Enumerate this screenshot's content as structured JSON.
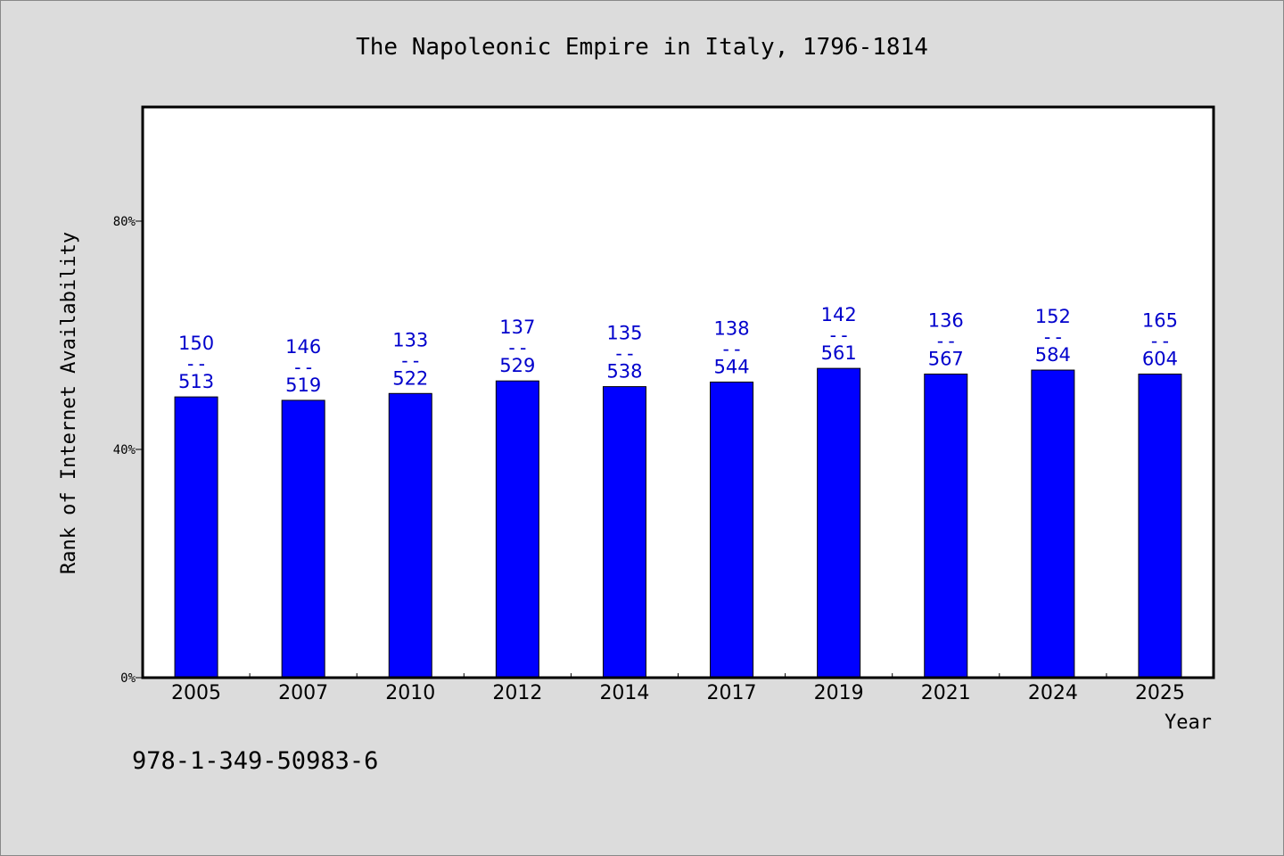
{
  "chart_data": {
    "type": "bar",
    "title": "The Napoleonic Empire in Italy, 1796-1814",
    "xlabel": "Year",
    "ylabel": "Rank of Internet Availability",
    "ylim": [
      0,
      100
    ],
    "yticks": [
      {
        "value": 0,
        "label": "0%"
      },
      {
        "value": 40,
        "label": "40%"
      },
      {
        "value": 80,
        "label": "80%"
      }
    ],
    "grid": false,
    "categories": [
      "2005",
      "2007",
      "2010",
      "2012",
      "2014",
      "2017",
      "2019",
      "2021",
      "2024",
      "2025"
    ],
    "values": [
      49.2,
      48.6,
      49.8,
      52.0,
      51.0,
      51.8,
      54.2,
      53.2,
      53.9,
      53.2
    ],
    "bar_labels": [
      {
        "top": "150",
        "sep": "--",
        "bottom": "513"
      },
      {
        "top": "146",
        "sep": "--",
        "bottom": "519"
      },
      {
        "top": "133",
        "sep": "--",
        "bottom": "522"
      },
      {
        "top": "137",
        "sep": "--",
        "bottom": "529"
      },
      {
        "top": "135",
        "sep": "--",
        "bottom": "538"
      },
      {
        "top": "138",
        "sep": "--",
        "bottom": "544"
      },
      {
        "top": "142",
        "sep": "--",
        "bottom": "561"
      },
      {
        "top": "136",
        "sep": "--",
        "bottom": "567"
      },
      {
        "top": "152",
        "sep": "--",
        "bottom": "584"
      },
      {
        "top": "165",
        "sep": "--",
        "bottom": "604"
      }
    ],
    "bar_color": "#0000ff",
    "label_color": "#0000cc"
  },
  "footnote": "978-1-349-50983-6"
}
